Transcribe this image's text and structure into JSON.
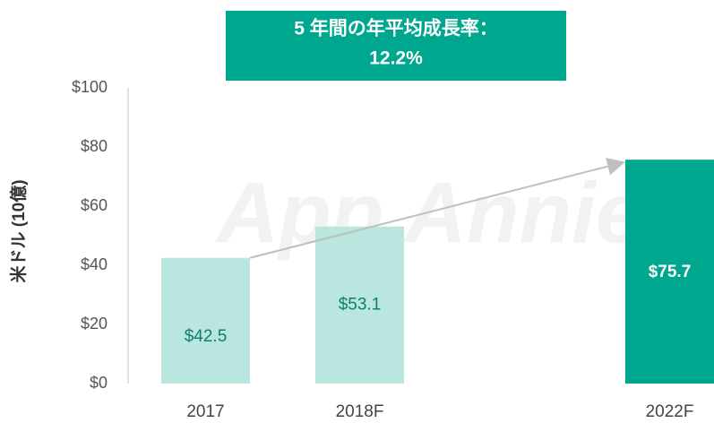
{
  "chart_data": {
    "type": "bar",
    "title": [
      "5 年間の年平均成長率：",
      "12.2%"
    ],
    "watermark": "App Annie",
    "y_label": "米ドル (10億)",
    "categories": [
      "2017",
      "2018F",
      "2022F"
    ],
    "values": [
      42.5,
      53.1,
      75.7
    ],
    "value_labels": [
      "$42.5",
      "$53.1",
      "$75.7"
    ],
    "colors": [
      "#b9e6df",
      "#b9e6df",
      "#00a78f"
    ],
    "ylim": [
      0,
      100
    ],
    "yticks": [
      {
        "value": 0,
        "label": "$0"
      },
      {
        "value": 20,
        "label": "$20"
      },
      {
        "value": 40,
        "label": "$40"
      },
      {
        "value": 60,
        "label": "$60"
      },
      {
        "value": 80,
        "label": "$80"
      },
      {
        "value": 100,
        "label": "$100"
      }
    ],
    "grid": false
  }
}
